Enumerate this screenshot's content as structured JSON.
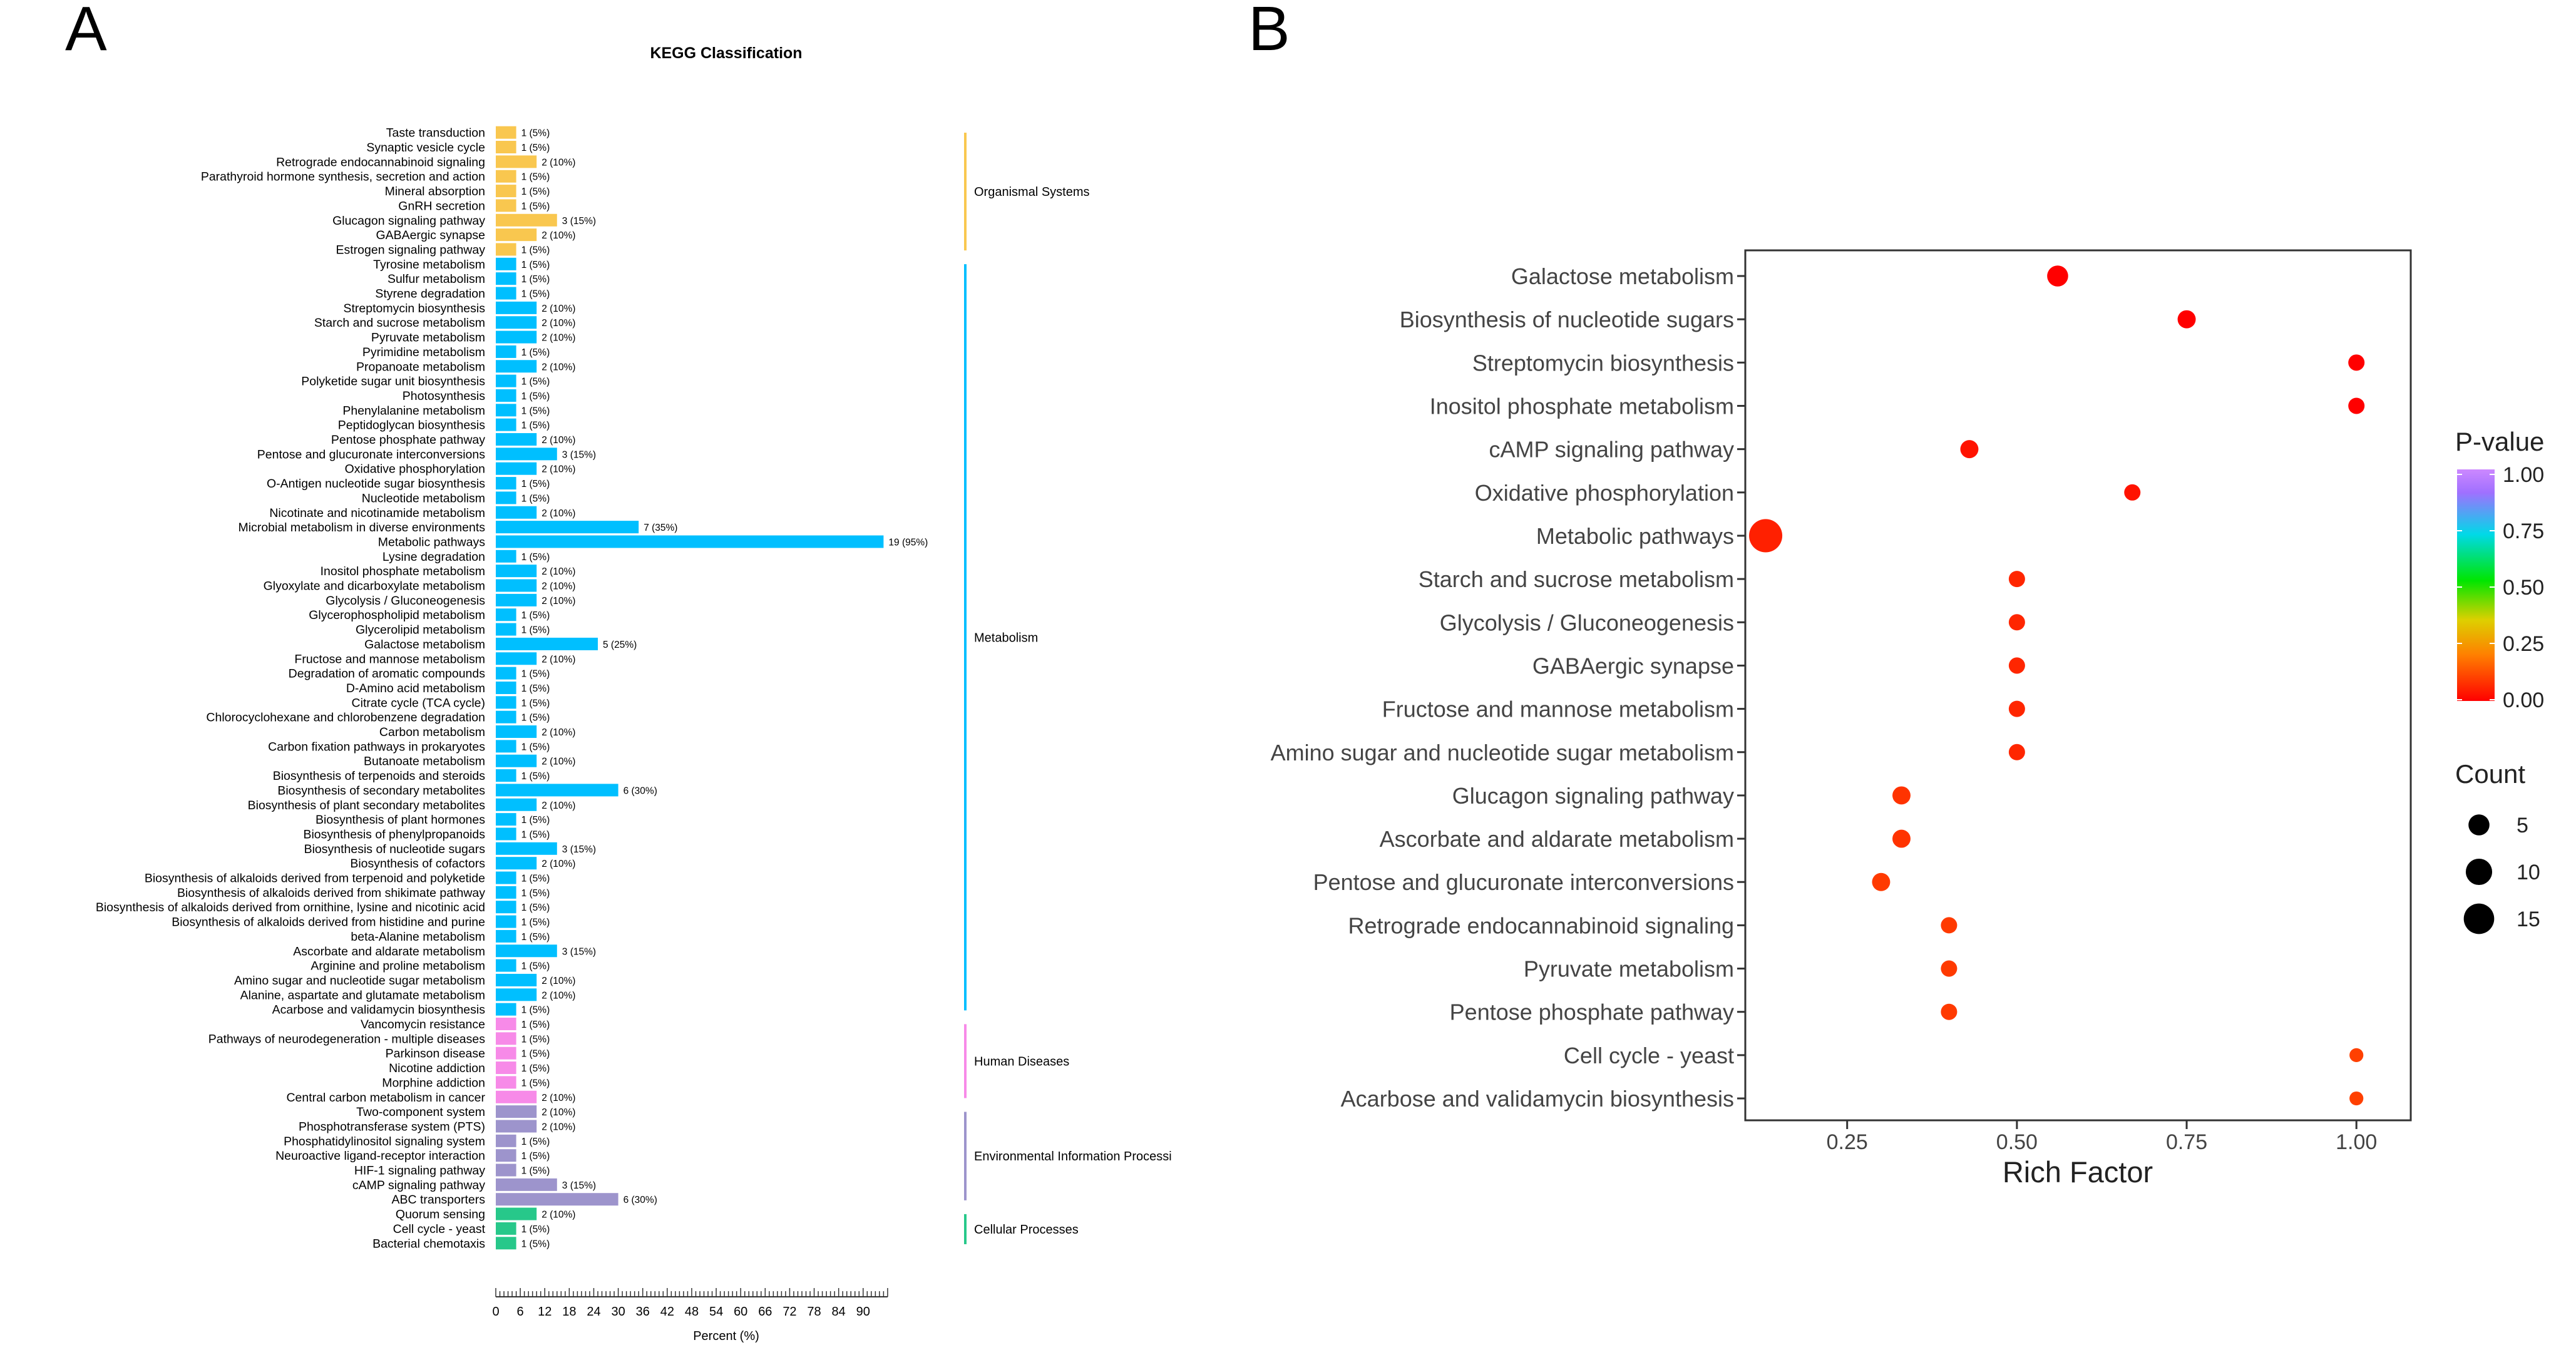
{
  "panel_labels": {
    "a": "A",
    "b": "B"
  },
  "chart_data": [
    {
      "type": "bar",
      "orientation": "horizontal",
      "title": "KEGG Classification",
      "xlabel": "Percent (%)",
      "xlim": [
        0,
        96
      ],
      "xticks": [
        0,
        6,
        12,
        18,
        24,
        30,
        36,
        42,
        48,
        54,
        60,
        66,
        72,
        78,
        84,
        90
      ],
      "categories": [
        "Taste transduction",
        "Synaptic vesicle cycle",
        "Retrograde endocannabinoid signaling",
        "Parathyroid hormone synthesis, secretion and action",
        "Mineral absorption",
        "GnRH secretion",
        "Glucagon signaling pathway",
        "GABAergic synapse",
        "Estrogen signaling pathway",
        "Tyrosine metabolism",
        "Sulfur metabolism",
        "Styrene degradation",
        "Streptomycin biosynthesis",
        "Starch and sucrose metabolism",
        "Pyruvate metabolism",
        "Pyrimidine metabolism",
        "Propanoate metabolism",
        "Polyketide sugar unit biosynthesis",
        "Photosynthesis",
        "Phenylalanine metabolism",
        "Peptidoglycan biosynthesis",
        "Pentose phosphate pathway",
        "Pentose and glucuronate interconversions",
        "Oxidative phosphorylation",
        "O-Antigen nucleotide sugar biosynthesis",
        "Nucleotide metabolism",
        "Nicotinate and nicotinamide metabolism",
        "Microbial metabolism in diverse environments",
        "Metabolic pathways",
        "Lysine degradation",
        "Inositol phosphate metabolism",
        "Glyoxylate and dicarboxylate metabolism",
        "Glycolysis / Gluconeogenesis",
        "Glycerophospholipid metabolism",
        "Glycerolipid metabolism",
        "Galactose metabolism",
        "Fructose and mannose metabolism",
        "Degradation of aromatic compounds",
        "D-Amino acid metabolism",
        "Citrate cycle (TCA cycle)",
        "Chlorocyclohexane and chlorobenzene degradation",
        "Carbon metabolism",
        "Carbon fixation pathways in prokaryotes",
        "Butanoate metabolism",
        "Biosynthesis of terpenoids and steroids",
        "Biosynthesis of secondary metabolites",
        "Biosynthesis of plant secondary metabolites",
        "Biosynthesis of plant hormones",
        "Biosynthesis of phenylpropanoids",
        "Biosynthesis of nucleotide sugars",
        "Biosynthesis of cofactors",
        "Biosynthesis of alkaloids derived from terpenoid and polyketide",
        "Biosynthesis of alkaloids derived from shikimate pathway",
        "Biosynthesis of alkaloids derived from ornithine, lysine and nicotinic acid",
        "Biosynthesis of alkaloids derived from histidine and purine",
        "beta-Alanine metabolism",
        "Ascorbate and aldarate metabolism",
        "Arginine and proline metabolism",
        "Amino sugar and nucleotide sugar metabolism",
        "Alanine, aspartate and glutamate metabolism",
        "Acarbose and validamycin biosynthesis",
        "Vancomycin resistance",
        "Pathways of neurodegeneration - multiple diseases",
        "Parkinson disease",
        "Nicotine addiction",
        "Morphine addiction",
        "Central carbon metabolism in cancer",
        "Two-component system",
        "Phosphotransferase system (PTS)",
        "Phosphatidylinositol signaling system",
        "Neuroactive ligand-receptor interaction",
        "HIF-1 signaling pathway",
        "cAMP signaling pathway",
        "ABC transporters",
        "Quorum sensing",
        "Cell cycle - yeast",
        "Bacterial chemotaxis"
      ],
      "counts": [
        1,
        1,
        2,
        1,
        1,
        1,
        3,
        2,
        1,
        1,
        1,
        1,
        2,
        2,
        2,
        1,
        2,
        1,
        1,
        1,
        1,
        2,
        3,
        2,
        1,
        1,
        2,
        7,
        19,
        1,
        2,
        2,
        2,
        1,
        1,
        5,
        2,
        1,
        1,
        1,
        1,
        2,
        1,
        2,
        1,
        6,
        2,
        1,
        1,
        3,
        2,
        1,
        1,
        1,
        1,
        1,
        3,
        1,
        2,
        2,
        1,
        1,
        1,
        1,
        1,
        1,
        2,
        2,
        2,
        1,
        1,
        1,
        3,
        6,
        2,
        1,
        1
      ],
      "values_percent": [
        5,
        5,
        10,
        5,
        5,
        5,
        15,
        10,
        5,
        5,
        5,
        5,
        10,
        10,
        10,
        5,
        10,
        5,
        5,
        5,
        5,
        10,
        15,
        10,
        5,
        5,
        10,
        35,
        95,
        5,
        10,
        10,
        10,
        5,
        5,
        25,
        10,
        5,
        5,
        5,
        5,
        10,
        5,
        10,
        5,
        30,
        10,
        5,
        5,
        15,
        10,
        5,
        5,
        5,
        5,
        5,
        15,
        5,
        10,
        10,
        5,
        5,
        5,
        5,
        5,
        5,
        10,
        10,
        10,
        5,
        5,
        5,
        15,
        30,
        10,
        5,
        5
      ],
      "value_labels": [
        "1 (5%)",
        "1 (5%)",
        "2 (10%)",
        "1 (5%)",
        "1 (5%)",
        "1 (5%)",
        "3 (15%)",
        "2 (10%)",
        "1 (5%)",
        "1 (5%)",
        "1 (5%)",
        "1 (5%)",
        "2 (10%)",
        "2 (10%)",
        "2 (10%)",
        "1 (5%)",
        "2 (10%)",
        "1 (5%)",
        "1 (5%)",
        "1 (5%)",
        "1 (5%)",
        "2 (10%)",
        "3 (15%)",
        "2 (10%)",
        "1 (5%)",
        "1 (5%)",
        "2 (10%)",
        "7 (35%)",
        "19 (95%)",
        "1 (5%)",
        "2 (10%)",
        "2 (10%)",
        "2 (10%)",
        "1 (5%)",
        "1 (5%)",
        "5 (25%)",
        "2 (10%)",
        "1 (5%)",
        "1 (5%)",
        "1 (5%)",
        "1 (5%)",
        "2 (10%)",
        "1 (5%)",
        "2 (10%)",
        "1 (5%)",
        "6 (30%)",
        "2 (10%)",
        "1 (5%)",
        "1 (5%)",
        "3 (15%)",
        "2 (10%)",
        "1 (5%)",
        "1 (5%)",
        "1 (5%)",
        "1 (5%)",
        "1 (5%)",
        "3 (15%)",
        "1 (5%)",
        "2 (10%)",
        "2 (10%)",
        "1 (5%)",
        "1 (5%)",
        "1 (5%)",
        "1 (5%)",
        "1 (5%)",
        "1 (5%)",
        "2 (10%)",
        "2 (10%)",
        "2 (10%)",
        "1 (5%)",
        "1 (5%)",
        "1 (5%)",
        "3 (15%)",
        "6 (30%)",
        "2 (10%)",
        "1 (5%)",
        "1 (5%)"
      ],
      "groups": [
        {
          "name": "Organismal Systems",
          "count": 9,
          "color": "#F9C74F"
        },
        {
          "name": "Metabolism",
          "count": 52,
          "color": "#00BFFF"
        },
        {
          "name": "Human Diseases",
          "count": 6,
          "color": "#F78AE8"
        },
        {
          "name": "Environmental Information Processi",
          "count": 7,
          "color": "#9D94CC"
        },
        {
          "name": "Cellular Processes",
          "count": 3,
          "color": "#27C88A"
        }
      ]
    },
    {
      "type": "scatter",
      "xlabel": "Rich Factor",
      "xlim": [
        0.1,
        1.08
      ],
      "xticks": [
        0.25,
        0.5,
        0.75,
        1.0
      ],
      "xtick_labels": [
        "0.25",
        "0.50",
        "0.75",
        "1.00"
      ],
      "pathways": [
        {
          "name": "Galactose metabolism",
          "rich_factor": 0.56,
          "count": 5,
          "p_value": 0.0
        },
        {
          "name": "Biosynthesis of nucleotide sugars",
          "rich_factor": 0.75,
          "count": 3,
          "p_value": 0.0
        },
        {
          "name": "Streptomycin biosynthesis",
          "rich_factor": 1.0,
          "count": 2,
          "p_value": 0.0
        },
        {
          "name": "Inositol phosphate metabolism",
          "rich_factor": 1.0,
          "count": 2,
          "p_value": 0.0
        },
        {
          "name": "cAMP signaling pathway",
          "rich_factor": 0.43,
          "count": 3,
          "p_value": 0.03
        },
        {
          "name": "Oxidative phosphorylation",
          "rich_factor": 0.67,
          "count": 2,
          "p_value": 0.03
        },
        {
          "name": "Metabolic pathways",
          "rich_factor": 0.13,
          "count": 19,
          "p_value": 0.05
        },
        {
          "name": "Starch and sucrose metabolism",
          "rich_factor": 0.5,
          "count": 2,
          "p_value": 0.06
        },
        {
          "name": "Glycolysis / Gluconeogenesis",
          "rich_factor": 0.5,
          "count": 2,
          "p_value": 0.06
        },
        {
          "name": "GABAergic synapse",
          "rich_factor": 0.5,
          "count": 2,
          "p_value": 0.06
        },
        {
          "name": "Fructose and mannose metabolism",
          "rich_factor": 0.5,
          "count": 2,
          "p_value": 0.06
        },
        {
          "name": "Amino sugar and nucleotide sugar metabolism",
          "rich_factor": 0.5,
          "count": 2,
          "p_value": 0.06
        },
        {
          "name": "Glucagon signaling pathway",
          "rich_factor": 0.33,
          "count": 3,
          "p_value": 0.08
        },
        {
          "name": "Ascorbate and aldarate metabolism",
          "rich_factor": 0.33,
          "count": 3,
          "p_value": 0.08
        },
        {
          "name": "Pentose and glucuronate interconversions",
          "rich_factor": 0.3,
          "count": 3,
          "p_value": 0.09
        },
        {
          "name": "Retrograde endocannabinoid signaling",
          "rich_factor": 0.4,
          "count": 2,
          "p_value": 0.09
        },
        {
          "name": "Pyruvate metabolism",
          "rich_factor": 0.4,
          "count": 2,
          "p_value": 0.09
        },
        {
          "name": "Pentose phosphate pathway",
          "rich_factor": 0.4,
          "count": 2,
          "p_value": 0.09
        },
        {
          "name": "Cell cycle - yeast",
          "rich_factor": 1.0,
          "count": 1,
          "p_value": 0.1
        },
        {
          "name": "Acarbose and validamycin biosynthesis",
          "rich_factor": 1.0,
          "count": 1,
          "p_value": 0.1
        }
      ],
      "color_legend": {
        "title": "P-value",
        "ticks": [
          1.0,
          0.75,
          0.5,
          0.25,
          0.0
        ],
        "tick_labels": [
          "1.00",
          "0.75",
          "0.50",
          "0.25",
          "0.00"
        ],
        "colors": [
          "#FF0000",
          "#FF7F00",
          "#FFD700",
          "#00E600",
          "#00D9E8",
          "#B060FF",
          "#CC88FF"
        ]
      },
      "size_legend": {
        "title": "Count",
        "values": [
          5,
          10,
          15
        ],
        "labels": [
          "5",
          "10",
          "15"
        ]
      }
    }
  ]
}
